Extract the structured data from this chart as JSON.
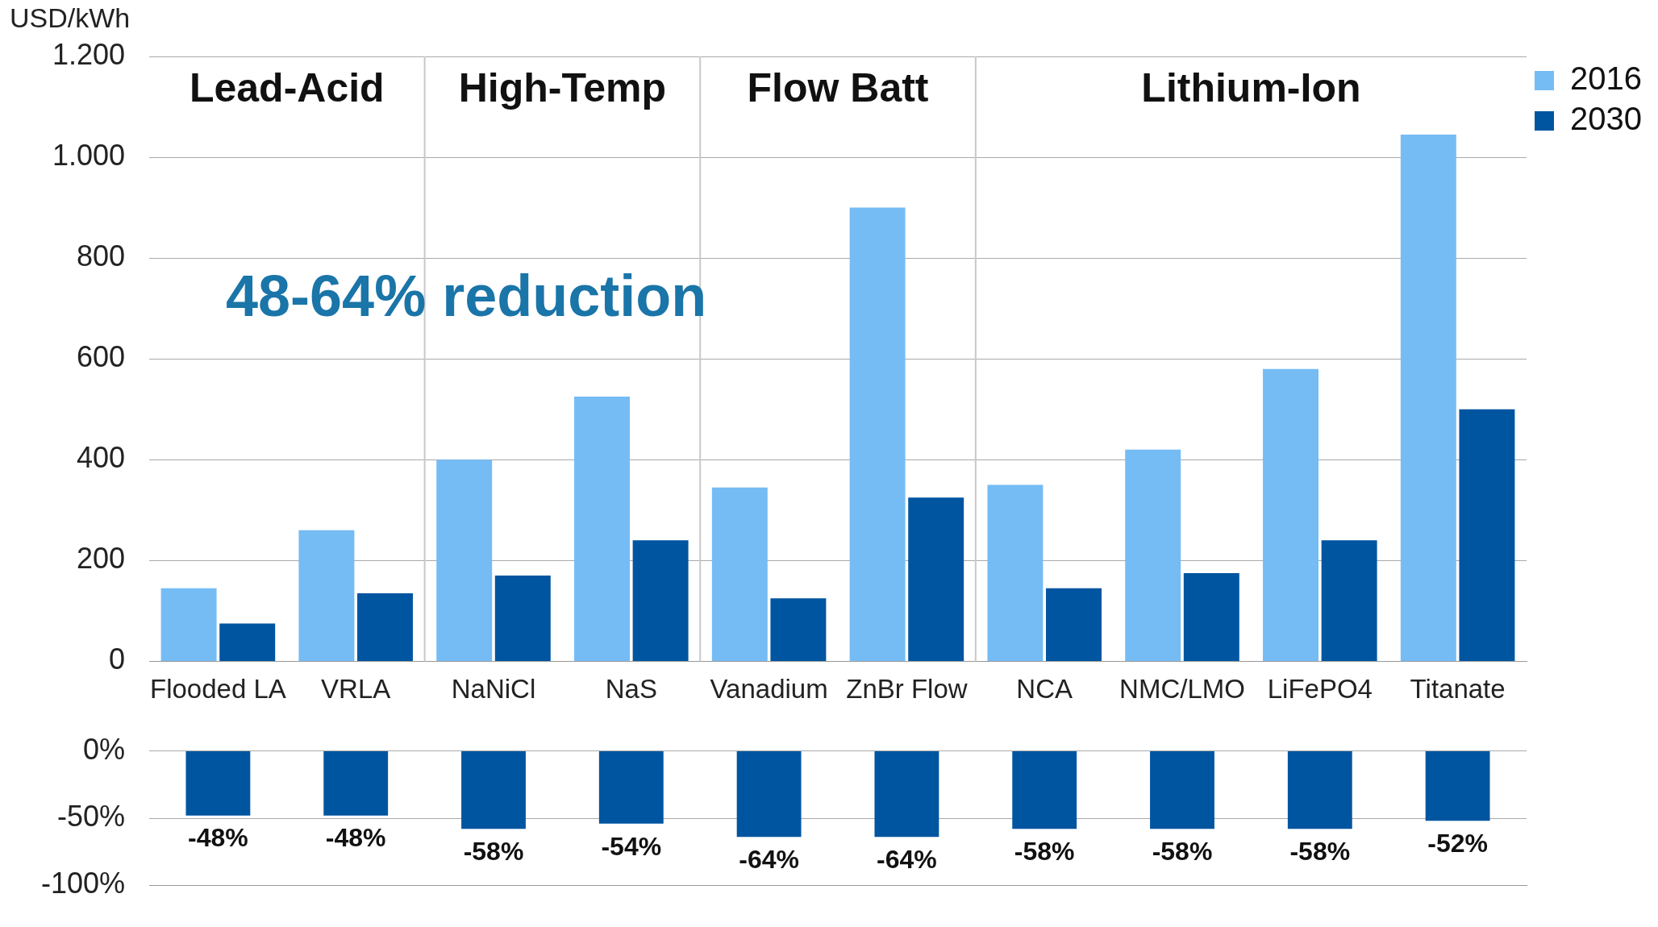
{
  "chart_data": [
    {
      "type": "bar",
      "ylabel": "USD/kWh",
      "categories": [
        "Flooded LA",
        "VRLA",
        "NaNiCl",
        "NaS",
        "Vanadium",
        "ZnBr Flow",
        "NCA",
        "NMC/LMO",
        "LiFePO4",
        "Titanate"
      ],
      "series": [
        {
          "name": "2016",
          "color": "#75bcf5",
          "values": [
            145,
            260,
            400,
            525,
            345,
            900,
            350,
            420,
            580,
            1045
          ]
        },
        {
          "name": "2030",
          "color": "#0055a0",
          "values": [
            75,
            135,
            170,
            240,
            125,
            325,
            145,
            175,
            240,
            500
          ]
        }
      ],
      "ylim": [
        0,
        1200
      ],
      "yticks": [
        0,
        200,
        400,
        600,
        800,
        {
          "value": 1000,
          "label": "1.000"
        },
        {
          "value": 1200,
          "label": "1.200"
        }
      ],
      "grid": "y",
      "legend": "top right",
      "annotations": [
        "Lead-Acid",
        "High-Temp",
        "Flow Batt",
        "Lithium-Ion",
        "48-64% reduction"
      ]
    },
    {
      "type": "bar",
      "categories": [
        null,
        null,
        null,
        null,
        null,
        null,
        null,
        null,
        null,
        null
      ],
      "values": [
        -48,
        -48,
        -58,
        -54,
        -64,
        -64,
        -58,
        -58,
        -58,
        -52
      ],
      "color": "#0055a0",
      "value_labels": [
        "-48%",
        "-48%",
        "-58%",
        "-54%",
        "-64%",
        "-64%",
        "-58%",
        "-58%",
        "-58%",
        "-52%"
      ],
      "ylim": [
        -100,
        0
      ],
      "yticks": [
        {
          "value": -100,
          "label": "-100%"
        },
        {
          "value": -50,
          "label": "-50%"
        },
        {
          "value": 0,
          "label": "0%"
        }
      ],
      "grid": "y",
      "tick_labels": "y"
    }
  ]
}
